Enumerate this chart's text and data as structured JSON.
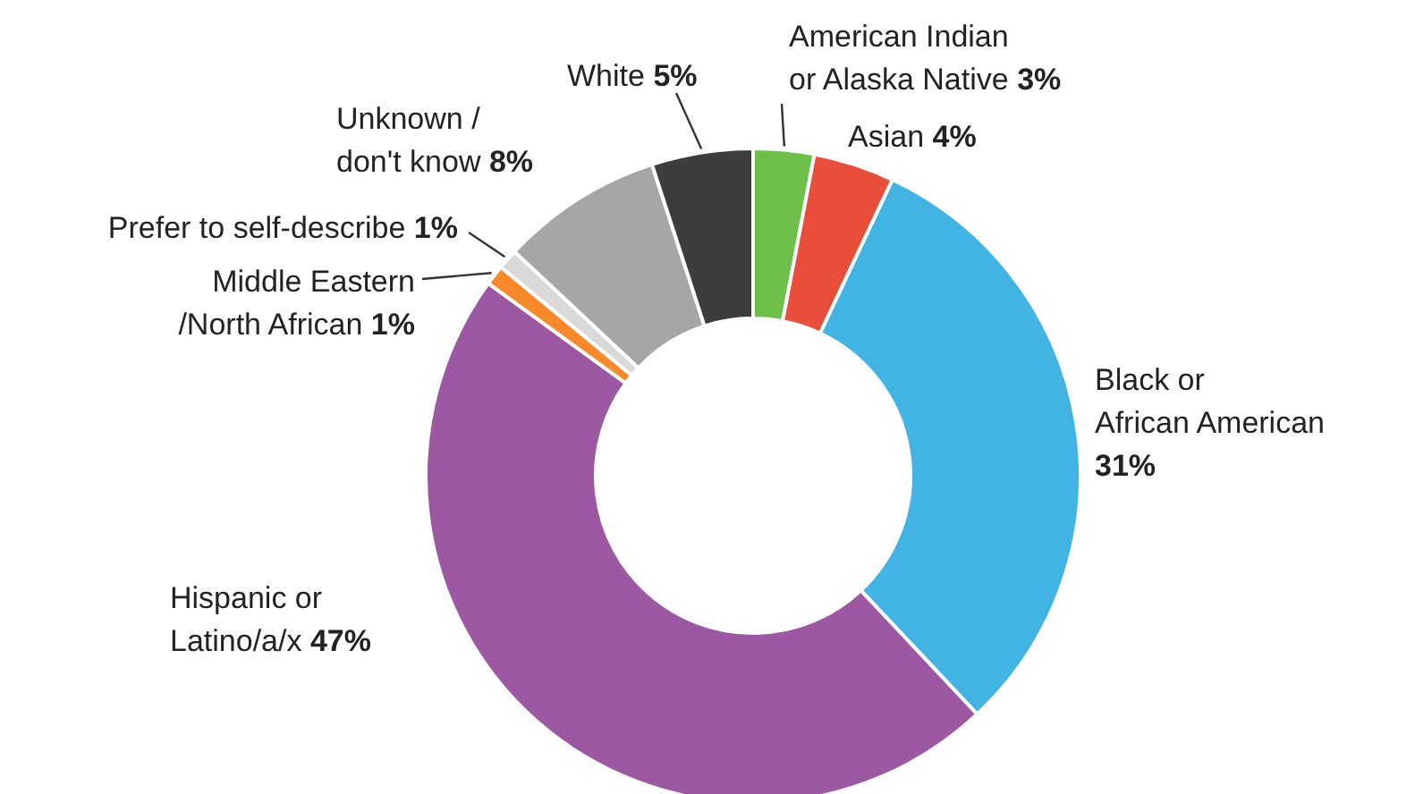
{
  "chart_data": {
    "type": "donut",
    "categories": [
      "American Indian or Alaska Native",
      "Asian",
      "Black or African American",
      "Hispanic or Latino/a/x",
      "Middle Eastern /North African",
      "Prefer to self-describe",
      "Unknown / don't know",
      "White"
    ],
    "values": [
      3,
      4,
      31,
      47,
      1,
      1,
      8,
      5
    ],
    "value_labels": [
      "3%",
      "4%",
      "31%",
      "47%",
      "1%",
      "1%",
      "8%",
      "5%"
    ],
    "colors": [
      "#6cc04a",
      "#e94e3b",
      "#42b4e4",
      "#9c58a1",
      "#f7892a",
      "#d9d9d9",
      "#a6a6a6",
      "#3d3d3d"
    ],
    "legend": false
  }
}
